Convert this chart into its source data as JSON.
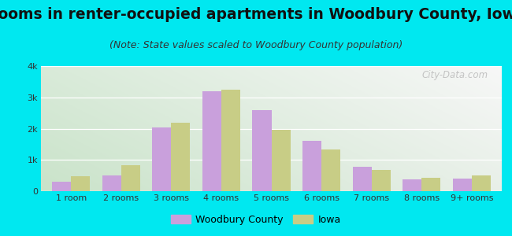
{
  "title": "Rooms in renter-occupied apartments in Woodbury County, Iowa",
  "subtitle": "(Note: State values scaled to Woodbury County population)",
  "categories": [
    "1 room",
    "2 rooms",
    "3 rooms",
    "4 rooms",
    "5 rooms",
    "6 rooms",
    "7 rooms",
    "8 rooms",
    "9+ rooms"
  ],
  "woodbury": [
    290,
    500,
    2050,
    3200,
    2580,
    1600,
    790,
    370,
    400
  ],
  "iowa": [
    480,
    840,
    2200,
    3250,
    1950,
    1330,
    690,
    420,
    510
  ],
  "woodbury_color": "#c9a0dc",
  "iowa_color": "#c8cd86",
  "background_outer": "#00e8f0",
  "ylim": [
    0,
    4000
  ],
  "yticks": [
    0,
    1000,
    2000,
    3000,
    4000
  ],
  "ytick_labels": [
    "0",
    "1k",
    "2k",
    "3k",
    "4k"
  ],
  "title_fontsize": 13.5,
  "subtitle_fontsize": 9,
  "watermark": "City-Data.com",
  "bar_width": 0.38
}
